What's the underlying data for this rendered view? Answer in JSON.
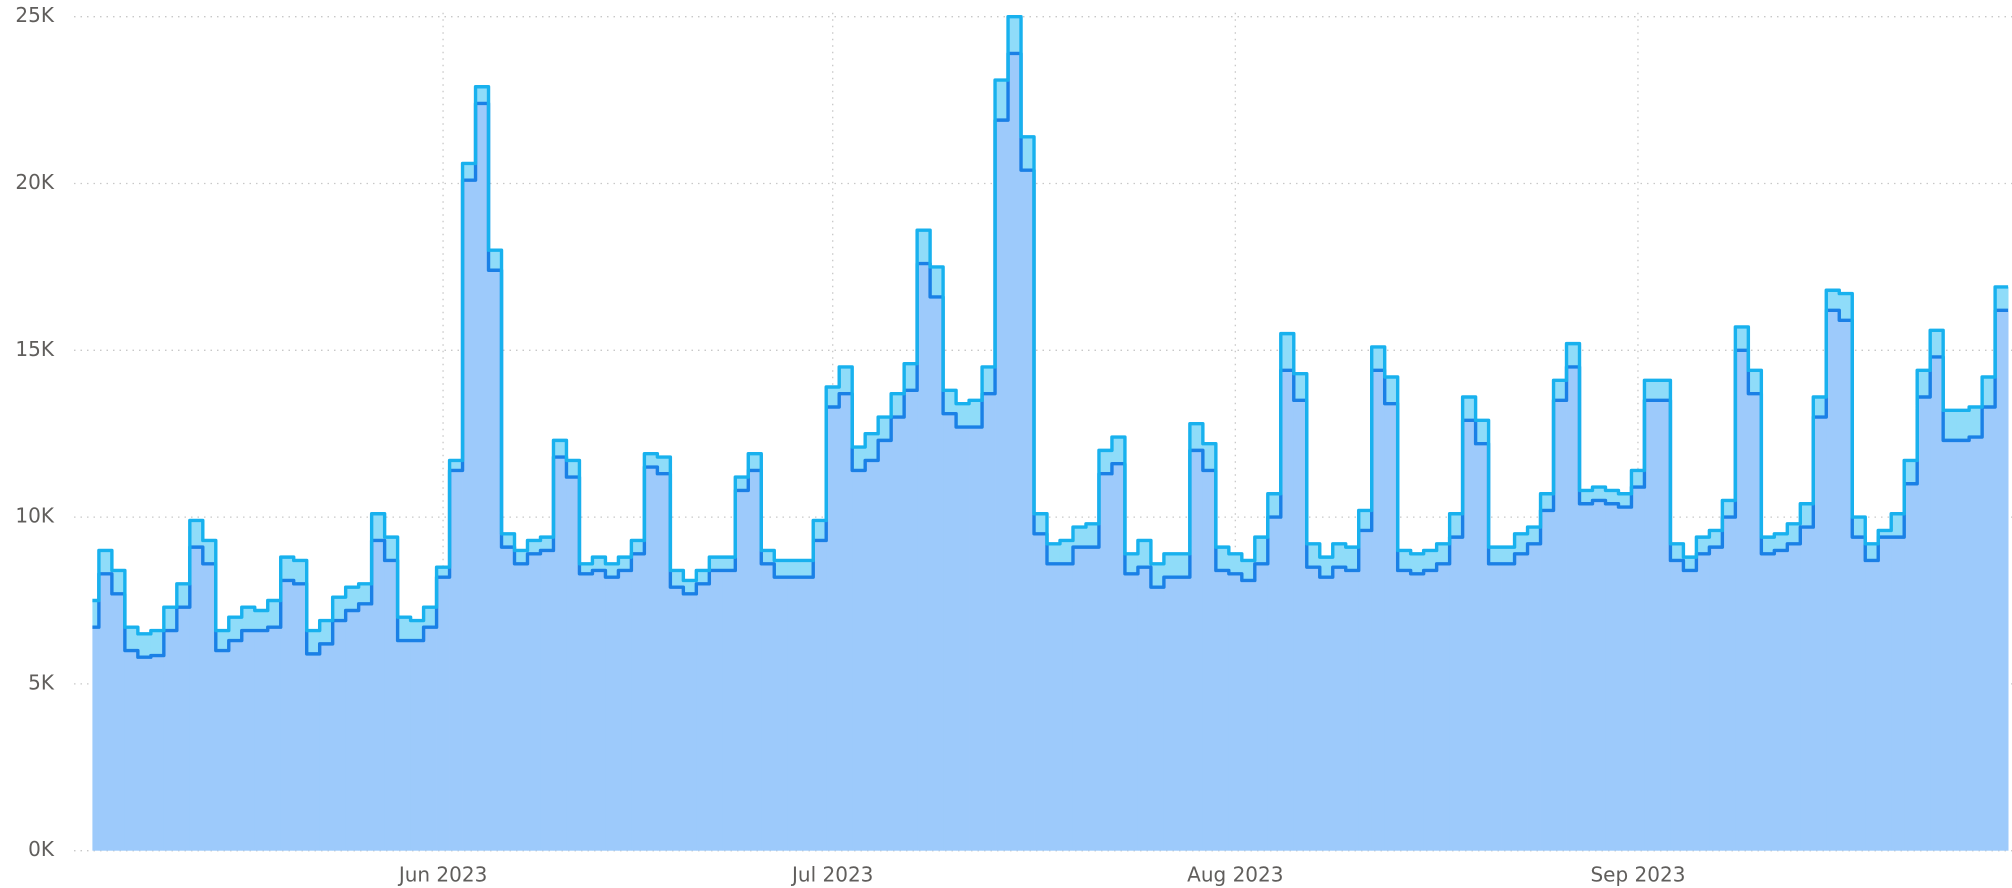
{
  "chart_data": {
    "type": "stacked-step-area",
    "x": [
      0,
      1,
      2,
      3,
      4,
      5,
      6,
      7,
      8,
      9,
      10,
      11,
      12,
      13,
      14,
      15,
      16,
      17,
      18,
      19,
      20,
      21,
      22,
      23,
      24,
      25,
      26,
      27,
      28,
      29,
      30,
      31,
      32,
      33,
      34,
      35,
      36,
      37,
      38,
      39,
      40,
      41,
      42,
      43,
      44,
      45,
      46,
      47,
      48,
      49,
      50,
      51,
      52,
      53,
      54,
      55,
      56,
      57,
      58,
      59,
      60,
      61,
      62,
      63,
      64,
      65,
      66,
      67,
      68,
      69,
      70,
      71,
      72,
      73,
      74,
      75,
      76,
      77,
      78,
      79,
      80,
      81,
      82,
      83,
      84,
      85,
      86,
      87,
      88,
      89,
      90,
      91,
      92,
      93,
      94,
      95,
      96,
      97,
      98,
      99,
      100,
      101,
      102,
      103,
      104,
      105,
      106,
      107,
      108,
      109,
      110,
      111,
      112,
      113,
      114,
      115,
      116,
      117,
      118,
      119,
      120,
      121,
      122,
      123,
      124,
      125,
      126,
      127,
      128,
      129,
      130,
      131,
      132,
      133,
      134,
      135,
      136,
      137,
      138,
      139,
      140,
      141,
      142,
      143,
      144,
      145,
      146,
      147
    ],
    "xlim": [
      0.5,
      148.3
    ],
    "xticks": [
      {
        "value": 27.5,
        "label": "Jun 2023"
      },
      {
        "value": 57.5,
        "label": "Jul 2023"
      },
      {
        "value": 88.5,
        "label": "Aug 2023"
      },
      {
        "value": 119.5,
        "label": "Sep 2023"
      }
    ],
    "ylim": [
      0,
      25000
    ],
    "yticks": [
      {
        "value": 0,
        "label": "0K"
      },
      {
        "value": 5000,
        "label": "5K"
      },
      {
        "value": 10000,
        "label": "10K"
      },
      {
        "value": 15000,
        "label": "15K"
      },
      {
        "value": 20000,
        "label": "20K"
      },
      {
        "value": 25000,
        "label": "25K"
      }
    ],
    "grid": true,
    "series": [
      {
        "color": "#9dcafb",
        "line_color": "#1a80e6",
        "values": [
          6700,
          8300,
          7700,
          6000,
          5800,
          5850,
          6600,
          7300,
          9100,
          8600,
          6000,
          6300,
          6600,
          6600,
          6700,
          8100,
          8000,
          5900,
          6200,
          6900,
          7200,
          7400,
          9300,
          8700,
          6300,
          6300,
          6700,
          8200,
          11400,
          20100,
          22400,
          17400,
          9100,
          8600,
          8900,
          9000,
          11800,
          11200,
          8300,
          8400,
          8200,
          8400,
          8900,
          11500,
          11300,
          7900,
          7700,
          8000,
          8400,
          8400,
          10800,
          11400,
          8600,
          8200,
          8200,
          8200,
          9300,
          13300,
          13700,
          11400,
          11700,
          12300,
          13000,
          13800,
          17600,
          16600,
          13100,
          12700,
          12700,
          13700,
          21900,
          23900,
          20400,
          9500,
          8600,
          8600,
          9100,
          9100,
          11300,
          11600,
          8300,
          8500,
          7900,
          8200,
          8200,
          12000,
          11400,
          8400,
          8300,
          8100,
          8600,
          10000,
          14400,
          13500,
          8500,
          8200,
          8500,
          8400,
          9600,
          14400,
          13400,
          8400,
          8300,
          8400,
          8600,
          9400,
          12900,
          12200,
          8600,
          8600,
          8900,
          9200,
          10200,
          13500,
          14500,
          10400,
          10500,
          10400,
          10300,
          10900,
          13500,
          13500,
          8700,
          8400,
          8900,
          9100,
          10000,
          15000,
          13700,
          8900,
          9000,
          9200,
          9700,
          13000,
          16200,
          15900,
          9400,
          8700,
          9400,
          9400,
          11000,
          13600,
          14800,
          12300,
          12300,
          12400,
          13300,
          16200
        ]
      },
      {
        "color": "#8fdcf9",
        "line_color": "#18b1ee",
        "values": [
          800,
          700,
          700,
          700,
          700,
          750,
          700,
          700,
          800,
          700,
          600,
          700,
          700,
          600,
          800,
          700,
          700,
          700,
          700,
          700,
          700,
          600,
          800,
          700,
          700,
          600,
          600,
          300,
          300,
          500,
          500,
          600,
          400,
          400,
          400,
          400,
          500,
          500,
          300,
          400,
          400,
          400,
          400,
          400,
          500,
          500,
          400,
          400,
          400,
          400,
          400,
          500,
          400,
          500,
          500,
          500,
          600,
          600,
          800,
          700,
          800,
          700,
          700,
          800,
          1000,
          900,
          700,
          700,
          800,
          800,
          1200,
          1100,
          1000,
          600,
          600,
          700,
          600,
          700,
          700,
          800,
          600,
          800,
          700,
          700,
          700,
          800,
          800,
          700,
          600,
          600,
          800,
          700,
          1100,
          800,
          700,
          600,
          700,
          700,
          600,
          700,
          800,
          600,
          600,
          600,
          600,
          700,
          700,
          700,
          500,
          500,
          600,
          500,
          500,
          600,
          700,
          400,
          400,
          400,
          400,
          500,
          600,
          600,
          500,
          400,
          500,
          500,
          500,
          700,
          700,
          500,
          500,
          600,
          700,
          600,
          600,
          800,
          600,
          500,
          200,
          700,
          700,
          800,
          800,
          900,
          900,
          900,
          900,
          700
        ]
      }
    ]
  }
}
